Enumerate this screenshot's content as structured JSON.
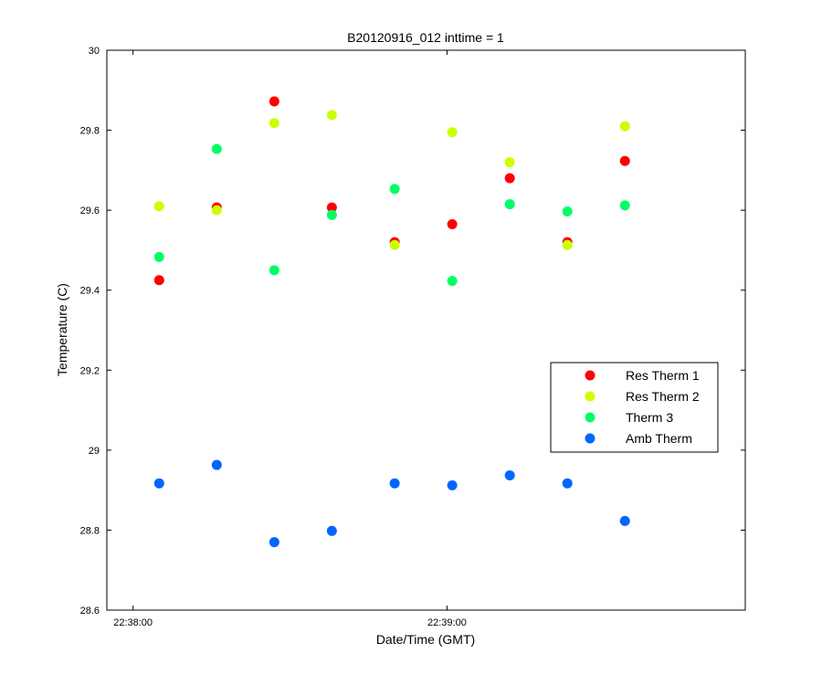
{
  "chart_data": {
    "type": "scatter",
    "title": "B20120916_012 inttime = 1",
    "xlabel": "Date/Time (GMT)",
    "ylabel": "Temperature (C)",
    "xlim": [
      "22:37:55",
      "22:39:57"
    ],
    "ylim": [
      28.6,
      30
    ],
    "x_ticks": [
      "22:38:00",
      "22:39:00"
    ],
    "y_ticks": [
      28.6,
      28.8,
      29,
      29.2,
      29.4,
      29.6,
      29.8,
      30
    ],
    "y_tick_labels": [
      "28.6",
      "28.8",
      "29",
      "29.2",
      "29.4",
      "29.6",
      "29.8",
      "30"
    ],
    "x": [
      "22:38:05",
      "22:38:16",
      "22:38:27",
      "22:38:38",
      "22:38:50",
      "22:39:01",
      "22:39:12",
      "22:39:23",
      "22:39:34"
    ],
    "series": [
      {
        "name": "Res Therm 1",
        "color": "#ff0000",
        "values": [
          29.425,
          29.607,
          29.872,
          29.607,
          29.52,
          29.565,
          29.68,
          29.52,
          29.723
        ]
      },
      {
        "name": "Res Therm 2",
        "color": "#ccff00",
        "values": [
          29.61,
          29.6,
          29.818,
          29.838,
          29.513,
          29.795,
          29.72,
          29.513,
          29.81
        ]
      },
      {
        "name": "Therm 3",
        "color": "#00ff66",
        "values": [
          29.483,
          29.753,
          29.45,
          29.588,
          29.653,
          29.423,
          29.615,
          29.597,
          29.612
        ]
      },
      {
        "name": "Amb Therm",
        "color": "#0066ff",
        "values": [
          28.917,
          28.963,
          28.77,
          28.798,
          28.917,
          28.912,
          28.937,
          28.917,
          28.823
        ]
      }
    ],
    "legend_position": "right",
    "grid": false
  }
}
